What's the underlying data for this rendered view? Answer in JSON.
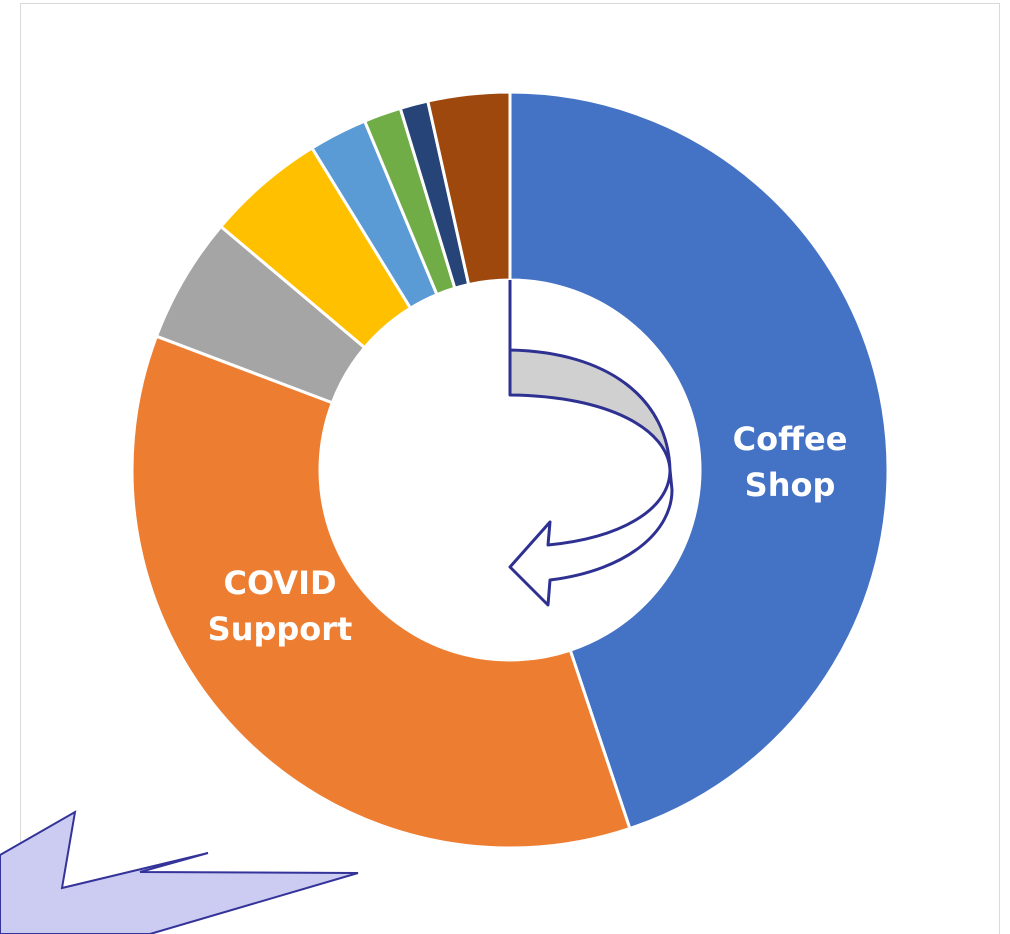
{
  "chart_data": {
    "type": "donut",
    "categories": [
      "Coffee Shop",
      "COVID Support",
      null,
      null,
      null,
      null,
      null,
      null
    ],
    "values": [
      45,
      36,
      5.4,
      5.1,
      2.5,
      1.6,
      1.2,
      3.5
    ],
    "colors": [
      "#4472c4",
      "#ed7d31",
      "#a5a5a5",
      "#ffc000",
      "#5b9bd5",
      "#70ad47",
      "#264478",
      "#9e480e"
    ]
  }
}
